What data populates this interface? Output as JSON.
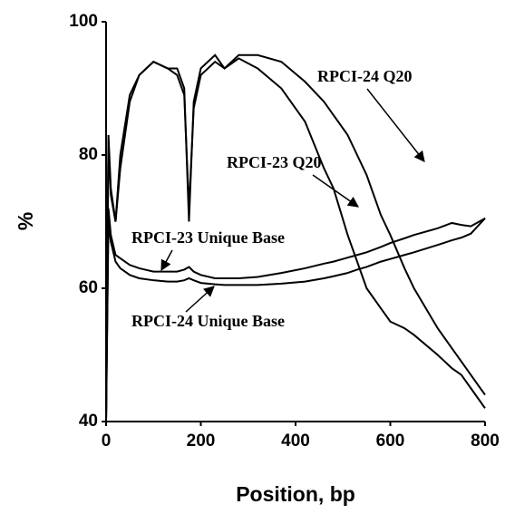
{
  "chart_data": {
    "type": "line",
    "x_label": "Position, bp",
    "y_label": "%",
    "x": [
      0,
      5,
      10,
      20,
      30,
      50,
      70,
      100,
      130,
      150,
      165,
      175,
      185,
      200,
      230,
      250,
      280,
      320,
      370,
      420,
      460,
      480,
      510,
      530,
      550,
      580,
      600,
      630,
      650,
      700,
      730,
      750,
      770,
      800
    ],
    "series": [
      {
        "name": "RPCI-23 Q20",
        "color": "#000000",
        "values": [
          40,
          83,
          75,
          70,
          78,
          88,
          92,
          94,
          93,
          93,
          90,
          70,
          88,
          93,
          95,
          93,
          94.5,
          93,
          90,
          85,
          78,
          75,
          68,
          64,
          60,
          57,
          55,
          54,
          53,
          50,
          48,
          47,
          45,
          42
        ]
      },
      {
        "name": "RPCI-24 Q20",
        "color": "#000000",
        "values": [
          40,
          82,
          74,
          70,
          80,
          89,
          92,
          94,
          93,
          92,
          89,
          72,
          87,
          92,
          94,
          93,
          95,
          95,
          94,
          91,
          88,
          86,
          83,
          80,
          77,
          71,
          68,
          63,
          60,
          54,
          51,
          49,
          47,
          44
        ]
      },
      {
        "name": "RPCI-23 Unique Base",
        "color": "#000000",
        "values": [
          40,
          72,
          68,
          65,
          64.5,
          63.5,
          63,
          62.5,
          62.5,
          62.5,
          62.8,
          63.2,
          62.5,
          62,
          61.5,
          61.5,
          61.5,
          61.7,
          62.3,
          63,
          63.7,
          64,
          64.6,
          65,
          65.4,
          66.2,
          66.8,
          67.5,
          68,
          69,
          69.8,
          69.5,
          69.3,
          70.5
        ]
      },
      {
        "name": "RPCI-24 Unique Base",
        "color": "#000000",
        "values": [
          40,
          70,
          67,
          64,
          63,
          62,
          61.5,
          61.2,
          61,
          61,
          61.2,
          61.5,
          61.2,
          60.8,
          60.6,
          60.5,
          60.5,
          60.5,
          60.7,
          61,
          61.5,
          61.8,
          62.3,
          62.8,
          63.2,
          64,
          64.4,
          65,
          65.4,
          66.5,
          67.2,
          67.6,
          68.2,
          70.5
        ]
      }
    ],
    "xlim": [
      0,
      800
    ],
    "ylim": [
      40,
      100
    ],
    "xticks": [
      0,
      200,
      400,
      600,
      800
    ],
    "yticks": [
      40,
      60,
      80,
      100
    ]
  }
}
